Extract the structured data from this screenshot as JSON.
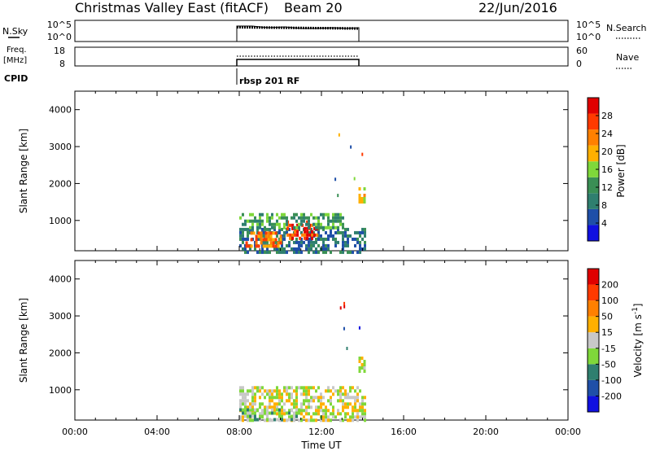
{
  "header": {
    "station": "Christmas Valley East (fitACF)",
    "beam": "Beam 20",
    "date": "22/Jun/2016"
  },
  "strips": {
    "nsky_label": "N.Sky",
    "nsky_ticks": [
      "10^5",
      "10^0"
    ],
    "nsearch_label": "N.Search",
    "freq_label_1": "Freq.",
    "freq_label_2": "[MHz]",
    "freq_ticks": [
      "18",
      "8"
    ],
    "nave_ticks": [
      "60",
      "0"
    ],
    "nave_label": "Nave",
    "cpid_label": "CPID",
    "cpid_value": "rbsp 201 RF"
  },
  "x_axis": {
    "label": "Time UT",
    "range_hours": [
      0,
      24
    ],
    "ticks": [
      "00:00",
      "04:00",
      "08:00",
      "12:00",
      "16:00",
      "20:00",
      "00:00"
    ],
    "tick_hours": [
      0,
      4,
      8,
      12,
      16,
      20,
      24
    ]
  },
  "colors": {
    "power": [
      "#1010e0",
      "#1f4fa8",
      "#2f7f6f",
      "#3a8f55",
      "#7fd83a",
      "#ffb000",
      "#ff8000",
      "#ff3a00",
      "#e00000"
    ],
    "velocity": [
      "#1010e0",
      "#1f4fa8",
      "#2f7f6f",
      "#7fd83a",
      "#c8c8c8",
      "#ffb000",
      "#ff8000",
      "#ff3a00",
      "#e00000"
    ]
  },
  "chart_data": [
    {
      "type": "heatmap",
      "panel": "power",
      "ylabel": "Slant Range [km]",
      "xlabel": "Time UT",
      "xlim": [
        0,
        24
      ],
      "ylim": [
        180,
        4500
      ],
      "yticks": [
        1000,
        2000,
        3000,
        4000
      ],
      "colorbar": {
        "label": "Power [dB]",
        "ticks": [
          4,
          8,
          12,
          16,
          20,
          24,
          28
        ],
        "range": [
          0,
          32
        ]
      },
      "data_time_range": [
        8.0,
        14.1
      ],
      "regions": [
        {
          "t": [
            8.0,
            14.1
          ],
          "r": [
            180,
            800
          ],
          "level": 2
        },
        {
          "t": [
            8.3,
            10.0
          ],
          "r": [
            300,
            700
          ],
          "level": 6
        },
        {
          "t": [
            10.3,
            11.8
          ],
          "r": [
            500,
            1000
          ],
          "level": 7
        },
        {
          "t": [
            13.8,
            14.1
          ],
          "r": [
            1500,
            1900
          ],
          "level": 5
        },
        {
          "t": [
            8.0,
            13.0
          ],
          "r": [
            800,
            1200
          ],
          "level": 3
        }
      ]
    },
    {
      "type": "heatmap",
      "panel": "velocity",
      "ylabel": "Slant Range [km]",
      "xlabel": "Time UT",
      "xlim": [
        0,
        24
      ],
      "ylim": [
        180,
        4500
      ],
      "yticks": [
        1000,
        2000,
        3000,
        4000
      ],
      "colorbar": {
        "label": "Velocity [m s^-1]",
        "ticks": [
          200,
          100,
          50,
          15,
          -15,
          -50,
          -100,
          -200
        ]
      },
      "data_time_range": [
        8.0,
        14.1
      ],
      "regions": [
        {
          "t": [
            8.0,
            14.1
          ],
          "r": [
            180,
            1100
          ],
          "level": 4
        },
        {
          "t": [
            8.0,
            11.0
          ],
          "r": [
            180,
            500
          ],
          "level": 3
        },
        {
          "t": [
            13.8,
            14.1
          ],
          "r": [
            1500,
            1900
          ],
          "level": 4
        }
      ]
    }
  ]
}
